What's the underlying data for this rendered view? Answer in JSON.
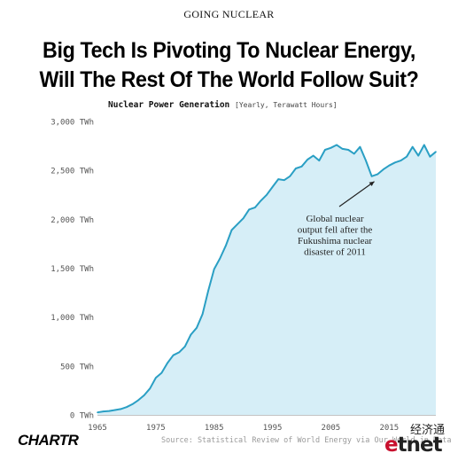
{
  "header": {
    "kicker": "GOING NUCLEAR",
    "title_line1": "Big Tech Is Pivoting To Nuclear Energy,",
    "title_line2": "Will The Rest Of The World Follow Suit?",
    "subtitle_bold": "Nuclear Power Generation",
    "subtitle_unit": "[Yearly, Terawatt Hours]"
  },
  "footer": {
    "logo": "CHARTR",
    "source": "Source: Statistical Review of World Energy via Our World in Data"
  },
  "watermark": {
    "cn": "经济通",
    "en_e": "e",
    "en_rest": "tnet"
  },
  "colors": {
    "line": "#2a9fc4",
    "fill": "#d6eef7",
    "axis_text": "#555555",
    "annotation": "#222222"
  },
  "chart_data": {
    "type": "area",
    "x_tick_labels": [
      "1965",
      "1975",
      "1985",
      "1995",
      "2005",
      "2015"
    ],
    "y_tick_labels": [
      "0 TWh",
      "500 TWh",
      "1,000 TWh",
      "1,500 TWh",
      "2,000 TWh",
      "2,500 TWh",
      "3,000 TWh"
    ],
    "y_ticks": [
      0,
      500,
      1000,
      1500,
      2000,
      2500,
      3000
    ],
    "x_ticks": [
      1965,
      1975,
      1985,
      1995,
      2005,
      2015
    ],
    "xlim": [
      1965,
      2023
    ],
    "ylim": [
      0,
      3000
    ],
    "grid": false,
    "annotation": {
      "lines": [
        "Global nuclear",
        "output fell after the",
        "Fukushima nuclear",
        "disaster of 2011"
      ],
      "points_to_year": 2012
    },
    "series": [
      {
        "x": [
          1965,
          1966,
          1967,
          1968,
          1969,
          1970,
          1971,
          1972,
          1973,
          1974,
          1975,
          1976,
          1977,
          1978,
          1979,
          1980,
          1981,
          1982,
          1983,
          1984,
          1985,
          1986,
          1987,
          1988,
          1989,
          1990,
          1991,
          1992,
          1993,
          1994,
          1995,
          1996,
          1997,
          1998,
          1999,
          2000,
          2001,
          2002,
          2003,
          2004,
          2005,
          2006,
          2007,
          2008,
          2009,
          2010,
          2011,
          2012,
          2013,
          2014,
          2015,
          2016,
          2017,
          2018,
          2019,
          2020,
          2021,
          2022,
          2023
        ],
        "values": [
          25,
          35,
          40,
          50,
          60,
          80,
          110,
          150,
          200,
          270,
          380,
          430,
          530,
          610,
          640,
          700,
          820,
          890,
          1030,
          1270,
          1490,
          1600,
          1730,
          1890,
          1950,
          2010,
          2100,
          2120,
          2190,
          2250,
          2330,
          2410,
          2400,
          2440,
          2520,
          2540,
          2610,
          2650,
          2600,
          2710,
          2730,
          2760,
          2720,
          2710,
          2670,
          2740,
          2600,
          2440,
          2460,
          2510,
          2550,
          2580,
          2600,
          2640,
          2740,
          2650,
          2760,
          2640,
          2690
        ]
      }
    ]
  }
}
